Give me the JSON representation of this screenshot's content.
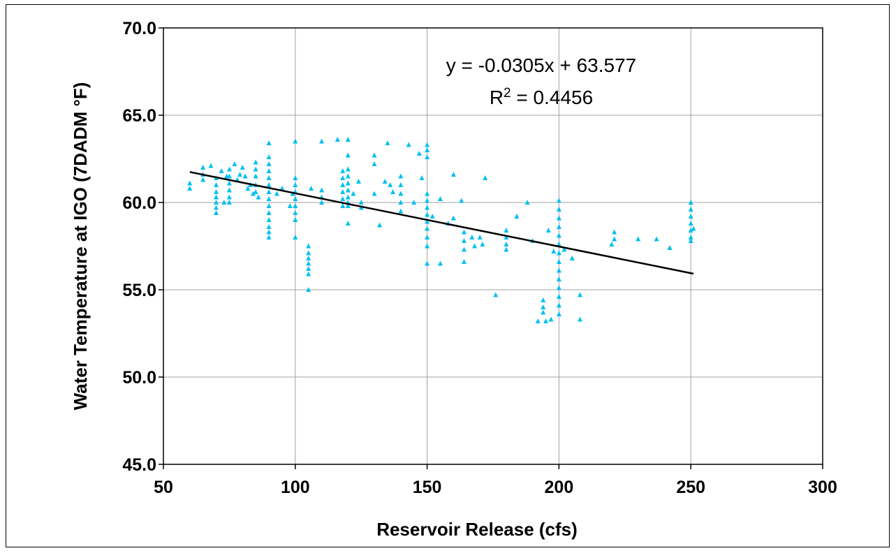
{
  "chart_data": {
    "type": "scatter",
    "xlabel": "Reservoir Release (cfs)",
    "ylabel": "Water Temperature at IGO (7DADM °F)",
    "xlim": [
      50,
      300
    ],
    "ylim": [
      45,
      70
    ],
    "x_ticks": [
      "50",
      "100",
      "150",
      "200",
      "250",
      "300"
    ],
    "y_ticks": [
      "45.0",
      "50.0",
      "55.0",
      "60.0",
      "65.0",
      "70.0"
    ],
    "grid": true,
    "legend": "none",
    "marker_color": "#00c0f0",
    "marker": "triangle",
    "trendline": {
      "slope": -0.0305,
      "intercept": 63.577,
      "x_range": [
        60,
        251
      ],
      "color": "#000000",
      "equation": "y = -0.0305x + 63.577",
      "r2_prefix": "R",
      "r2_exponent": "2",
      "r2_value": " = 0.4456"
    },
    "series": [
      {
        "points": [
          [
            60,
            61.1
          ],
          [
            60,
            60.8
          ],
          [
            65,
            62.0
          ],
          [
            65,
            61.6
          ],
          [
            65,
            61.3
          ],
          [
            68,
            62.1
          ],
          [
            70,
            61.4
          ],
          [
            70,
            61.0
          ],
          [
            70,
            60.6
          ],
          [
            70,
            60.3
          ],
          [
            70,
            60.0
          ],
          [
            70,
            59.7
          ],
          [
            70,
            59.4
          ],
          [
            72,
            61.8
          ],
          [
            73,
            60.0
          ],
          [
            74,
            61.5
          ],
          [
            75,
            61.9
          ],
          [
            75,
            61.5
          ],
          [
            75,
            61.1
          ],
          [
            75,
            60.7
          ],
          [
            75,
            60.3
          ],
          [
            75,
            60.0
          ],
          [
            77,
            62.2
          ],
          [
            78,
            61.3
          ],
          [
            79,
            61.6
          ],
          [
            80,
            62.0
          ],
          [
            81,
            61.5
          ],
          [
            82,
            60.8
          ],
          [
            83,
            61.0
          ],
          [
            84,
            60.5
          ],
          [
            85,
            62.3
          ],
          [
            85,
            61.9
          ],
          [
            85,
            61.5
          ],
          [
            85,
            61.0
          ],
          [
            85,
            60.6
          ],
          [
            86,
            60.3
          ],
          [
            90,
            63.4
          ],
          [
            90,
            62.6
          ],
          [
            90,
            62.2
          ],
          [
            90,
            61.8
          ],
          [
            90,
            61.4
          ],
          [
            90,
            61.0
          ],
          [
            90,
            60.6
          ],
          [
            90,
            60.2
          ],
          [
            90,
            59.8
          ],
          [
            90,
            59.4
          ],
          [
            90,
            59.0
          ],
          [
            90,
            58.6
          ],
          [
            90,
            58.3
          ],
          [
            90,
            58.0
          ],
          [
            93,
            60.5
          ],
          [
            95,
            60.8
          ],
          [
            98,
            59.8
          ],
          [
            99,
            60.5
          ],
          [
            100,
            63.5
          ],
          [
            100,
            61.4
          ],
          [
            100,
            61.0
          ],
          [
            100,
            60.6
          ],
          [
            100,
            60.2
          ],
          [
            100,
            59.8
          ],
          [
            100,
            59.4
          ],
          [
            100,
            59.0
          ],
          [
            100,
            58.0
          ],
          [
            105,
            57.5
          ],
          [
            105,
            57.1
          ],
          [
            105,
            56.8
          ],
          [
            105,
            56.5
          ],
          [
            105,
            56.2
          ],
          [
            105,
            55.9
          ],
          [
            105,
            55.0
          ],
          [
            106,
            60.8
          ],
          [
            110,
            63.5
          ],
          [
            110,
            60.7
          ],
          [
            110,
            60.3
          ],
          [
            110,
            60.0
          ],
          [
            116,
            63.6
          ],
          [
            118,
            61.8
          ],
          [
            118,
            61.4
          ],
          [
            118,
            61.0
          ],
          [
            118,
            60.6
          ],
          [
            118,
            60.2
          ],
          [
            118,
            59.8
          ],
          [
            120,
            63.6
          ],
          [
            120,
            62.7
          ],
          [
            120,
            61.9
          ],
          [
            120,
            61.5
          ],
          [
            120,
            61.1
          ],
          [
            120,
            60.7
          ],
          [
            120,
            60.3
          ],
          [
            120,
            60.0
          ],
          [
            120,
            59.8
          ],
          [
            120,
            58.8
          ],
          [
            122,
            60.5
          ],
          [
            124,
            61.2
          ],
          [
            125,
            60.0
          ],
          [
            125,
            59.7
          ],
          [
            130,
            62.7
          ],
          [
            130,
            62.2
          ],
          [
            130,
            60.5
          ],
          [
            132,
            58.7
          ],
          [
            134,
            61.2
          ],
          [
            135,
            63.4
          ],
          [
            136,
            61.0
          ],
          [
            137,
            60.6
          ],
          [
            140,
            61.5
          ],
          [
            140,
            61.0
          ],
          [
            140,
            60.5
          ],
          [
            140,
            60.0
          ],
          [
            140,
            59.5
          ],
          [
            143,
            63.3
          ],
          [
            145,
            60.0
          ],
          [
            147,
            62.8
          ],
          [
            148,
            61.4
          ],
          [
            150,
            63.3
          ],
          [
            150,
            63.0
          ],
          [
            150,
            62.6
          ],
          [
            150,
            60.5
          ],
          [
            150,
            60.1
          ],
          [
            150,
            59.7
          ],
          [
            150,
            59.3
          ],
          [
            150,
            58.9
          ],
          [
            150,
            58.5
          ],
          [
            150,
            58.0
          ],
          [
            150,
            57.5
          ],
          [
            150,
            56.5
          ],
          [
            152,
            59.2
          ],
          [
            155,
            60.2
          ],
          [
            155,
            56.5
          ],
          [
            158,
            58.8
          ],
          [
            160,
            61.6
          ],
          [
            160,
            59.1
          ],
          [
            163,
            60.1
          ],
          [
            164,
            58.3
          ],
          [
            164,
            57.8
          ],
          [
            164,
            57.3
          ],
          [
            164,
            56.6
          ],
          [
            167,
            58.0
          ],
          [
            168,
            57.5
          ],
          [
            170,
            58.0
          ],
          [
            171,
            57.6
          ],
          [
            172,
            61.4
          ],
          [
            176,
            54.7
          ],
          [
            180,
            58.4
          ],
          [
            180,
            58.0
          ],
          [
            180,
            57.6
          ],
          [
            180,
            57.3
          ],
          [
            184,
            59.2
          ],
          [
            188,
            60.0
          ],
          [
            190,
            57.8
          ],
          [
            192,
            53.2
          ],
          [
            194,
            54.4
          ],
          [
            194,
            54.0
          ],
          [
            194,
            53.7
          ],
          [
            195,
            53.2
          ],
          [
            196,
            58.4
          ],
          [
            197,
            53.3
          ],
          [
            198,
            57.2
          ],
          [
            200,
            60.1
          ],
          [
            200,
            59.6
          ],
          [
            200,
            59.1
          ],
          [
            200,
            58.6
          ],
          [
            200,
            58.1
          ],
          [
            200,
            57.6
          ],
          [
            200,
            57.1
          ],
          [
            200,
            56.6
          ],
          [
            200,
            56.1
          ],
          [
            200,
            55.6
          ],
          [
            200,
            55.1
          ],
          [
            200,
            54.6
          ],
          [
            200,
            54.1
          ],
          [
            200,
            53.6
          ],
          [
            202,
            57.3
          ],
          [
            205,
            56.8
          ],
          [
            208,
            54.7
          ],
          [
            208,
            53.3
          ],
          [
            220,
            57.6
          ],
          [
            221,
            58.3
          ],
          [
            221,
            57.9
          ],
          [
            230,
            57.9
          ],
          [
            237,
            57.9
          ],
          [
            242,
            57.4
          ],
          [
            250,
            60.0
          ],
          [
            250,
            59.6
          ],
          [
            250,
            59.2
          ],
          [
            250,
            58.8
          ],
          [
            250,
            58.4
          ],
          [
            250,
            58.0
          ],
          [
            250,
            57.8
          ],
          [
            251,
            58.5
          ]
        ]
      }
    ]
  }
}
